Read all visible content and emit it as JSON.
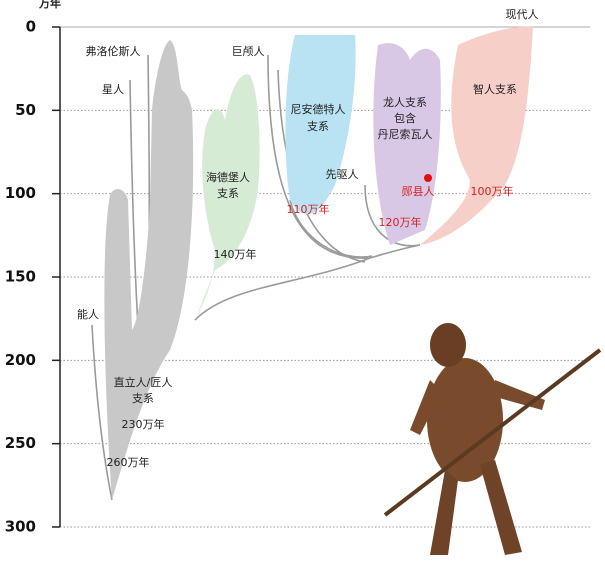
{
  "axis": {
    "unit": "万年",
    "ticks": [
      0,
      50,
      100,
      150,
      200,
      250,
      300
    ]
  },
  "groups": {
    "modern": {
      "lines": [
        "现代人"
      ]
    },
    "floresiensis": {
      "lines": [
        "弗洛伦斯人"
      ]
    },
    "luzonensis": {
      "lines": [
        "星人"
      ]
    },
    "juluren": {
      "lines": [
        "巨颅人"
      ]
    },
    "neanderthal": {
      "lines": [
        "尼安德特人",
        "支系"
      ],
      "age": "110万年"
    },
    "dragon": {
      "lines": [
        "龙人支系",
        "包含",
        "丹尼索瓦人"
      ],
      "age": "120万年"
    },
    "sapiens": {
      "lines": [
        "智人支系"
      ],
      "age": "100万年"
    },
    "heidelberg": {
      "lines": [
        "海德堡人",
        "支系"
      ],
      "age": "140万年"
    },
    "antecessor": {
      "lines": [
        "先驱人"
      ]
    },
    "yunxian": {
      "lines": [
        "郧县人"
      ]
    },
    "habilis": {
      "lines": [
        "能人"
      ]
    },
    "erectus": {
      "lines": [
        "直立人/匠人",
        "支系"
      ],
      "age": "230万年"
    },
    "root": {
      "age": "260万年"
    }
  }
}
